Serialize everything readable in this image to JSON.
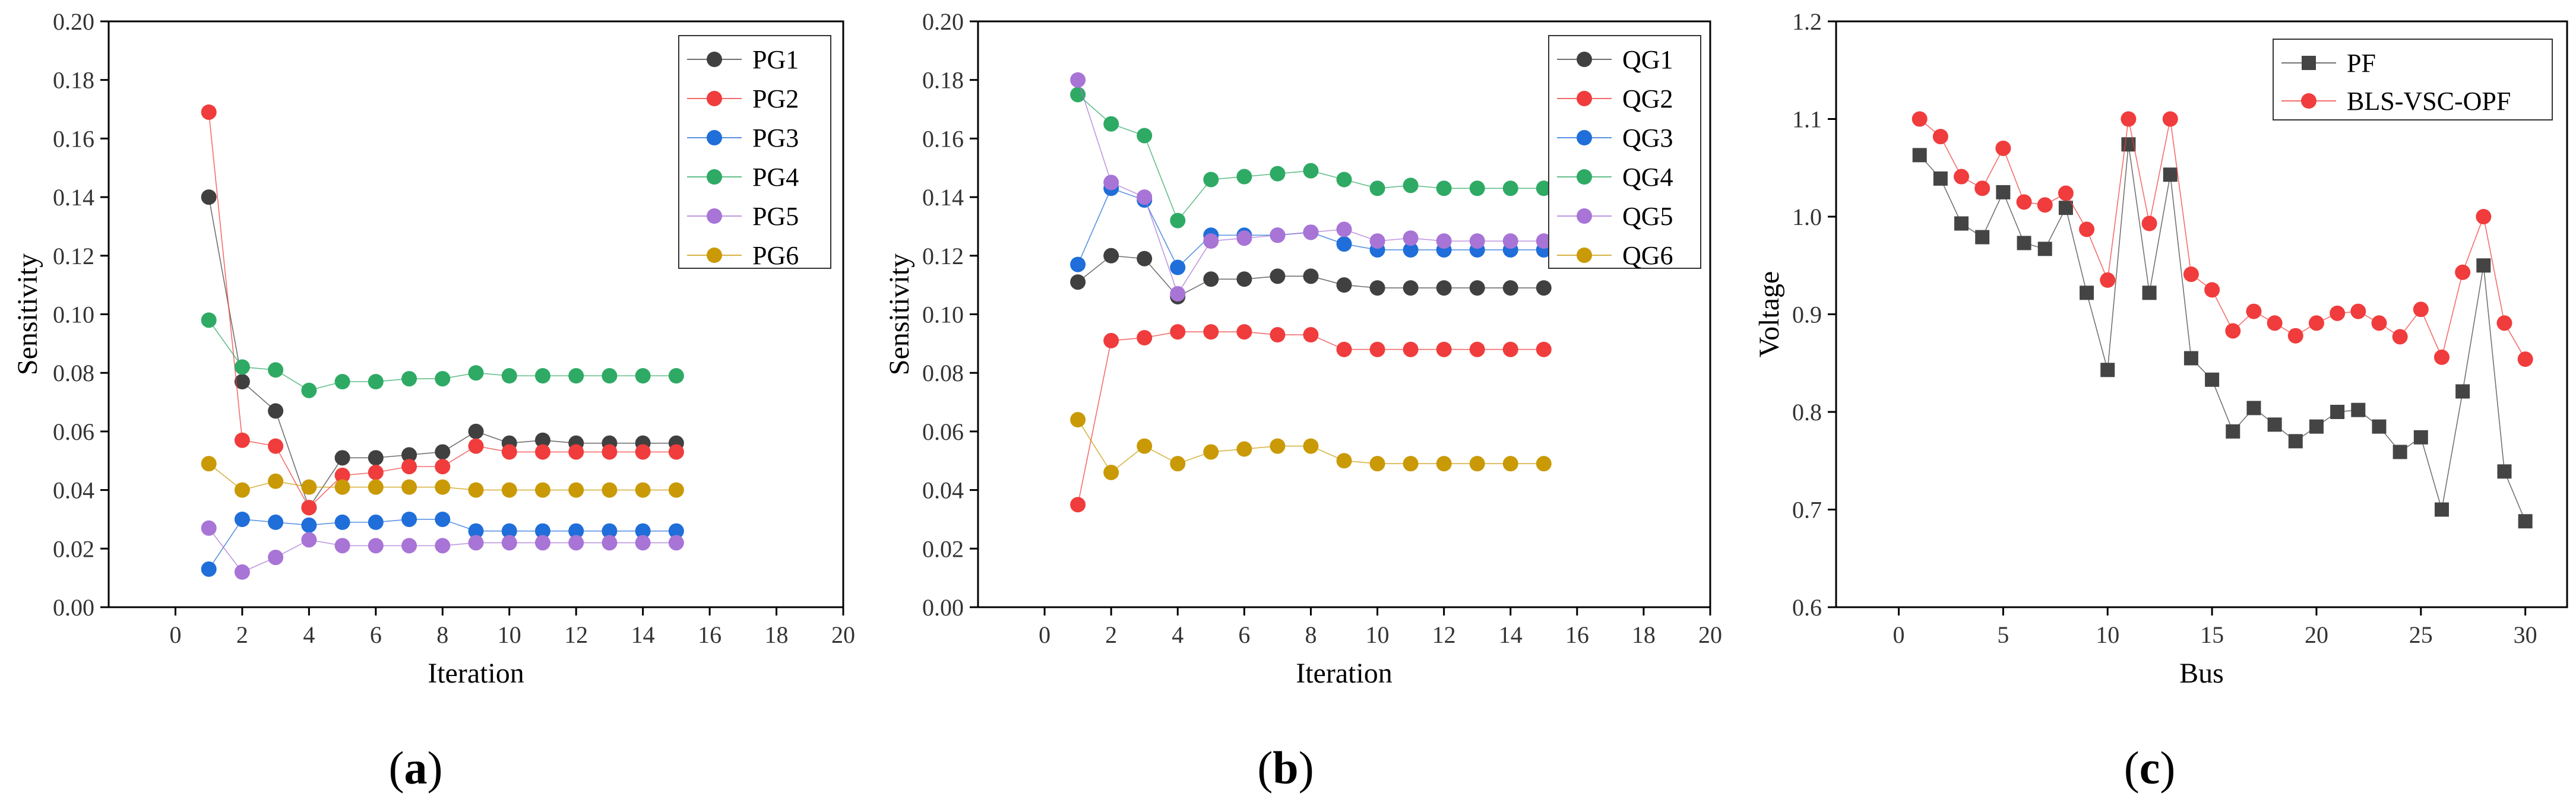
{
  "chart_data": [
    {
      "type": "line",
      "caption_letter": "a",
      "xlabel": "Iteration",
      "ylabel": "Sensitivity",
      "xlim": [
        -2,
        20
      ],
      "ylim": [
        0,
        0.2
      ],
      "x_ticks": [
        "0",
        "2",
        "4",
        "6",
        "8",
        "10",
        "12",
        "14",
        "16",
        "18",
        "20"
      ],
      "y_ticks": [
        "0.00",
        "0.02",
        "0.04",
        "0.06",
        "0.08",
        "0.10",
        "0.12",
        "0.14",
        "0.16",
        "0.18",
        "0.20"
      ],
      "legend_position": "top-right",
      "x": [
        1,
        2,
        3,
        4,
        5,
        6,
        7,
        8,
        9,
        10,
        11,
        12,
        13,
        14,
        15
      ],
      "series": [
        {
          "name": "PG1",
          "color": "#404040",
          "values": [
            0.14,
            0.077,
            0.067,
            0.034,
            0.051,
            0.051,
            0.052,
            0.053,
            0.06,
            0.056,
            0.057,
            0.056,
            0.056,
            0.056,
            0.056
          ]
        },
        {
          "name": "PG2",
          "color": "#f03c3c",
          "values": [
            0.169,
            0.057,
            0.055,
            0.034,
            0.045,
            0.046,
            0.048,
            0.048,
            0.055,
            0.053,
            0.053,
            0.053,
            0.053,
            0.053,
            0.053
          ]
        },
        {
          "name": "PG3",
          "color": "#1f6ed9",
          "values": [
            0.013,
            0.03,
            0.029,
            0.028,
            0.029,
            0.029,
            0.03,
            0.03,
            0.026,
            0.026,
            0.026,
            0.026,
            0.026,
            0.026,
            0.026
          ]
        },
        {
          "name": "PG4",
          "color": "#2eaa64",
          "values": [
            0.098,
            0.082,
            0.081,
            0.074,
            0.077,
            0.077,
            0.078,
            0.078,
            0.08,
            0.079,
            0.079,
            0.079,
            0.079,
            0.079,
            0.079
          ]
        },
        {
          "name": "PG5",
          "color": "#a874d6",
          "values": [
            0.027,
            0.012,
            0.017,
            0.023,
            0.021,
            0.021,
            0.021,
            0.021,
            0.022,
            0.022,
            0.022,
            0.022,
            0.022,
            0.022,
            0.022
          ]
        },
        {
          "name": "PG6",
          "color": "#c99a06",
          "values": [
            0.049,
            0.04,
            0.043,
            0.041,
            0.041,
            0.041,
            0.041,
            0.041,
            0.04,
            0.04,
            0.04,
            0.04,
            0.04,
            0.04,
            0.04
          ]
        }
      ]
    },
    {
      "type": "line",
      "caption_letter": "b",
      "xlabel": "Iteration",
      "ylabel": "Sensitivity",
      "xlim": [
        -2,
        20
      ],
      "ylim": [
        0,
        0.2
      ],
      "x_ticks": [
        "0",
        "2",
        "4",
        "6",
        "8",
        "10",
        "12",
        "14",
        "16",
        "18",
        "20"
      ],
      "y_ticks": [
        "0.00",
        "0.02",
        "0.04",
        "0.06",
        "0.08",
        "0.10",
        "0.12",
        "0.14",
        "0.16",
        "0.18",
        "0.20"
      ],
      "legend_position": "top-right",
      "x": [
        1,
        2,
        3,
        4,
        5,
        6,
        7,
        8,
        9,
        10,
        11,
        12,
        13,
        14,
        15
      ],
      "series": [
        {
          "name": "QG1",
          "color": "#404040",
          "values": [
            0.111,
            0.12,
            0.119,
            0.106,
            0.112,
            0.112,
            0.113,
            0.113,
            0.11,
            0.109,
            0.109,
            0.109,
            0.109,
            0.109,
            0.109
          ]
        },
        {
          "name": "QG2",
          "color": "#f03c3c",
          "values": [
            0.035,
            0.091,
            0.092,
            0.094,
            0.094,
            0.094,
            0.093,
            0.093,
            0.088,
            0.088,
            0.088,
            0.088,
            0.088,
            0.088,
            0.088
          ]
        },
        {
          "name": "QG3",
          "color": "#1f6ed9",
          "values": [
            0.117,
            0.143,
            0.139,
            0.116,
            0.127,
            0.127,
            0.127,
            0.128,
            0.124,
            0.122,
            0.122,
            0.122,
            0.122,
            0.122,
            0.122
          ]
        },
        {
          "name": "QG4",
          "color": "#2eaa64",
          "values": [
            0.175,
            0.165,
            0.161,
            0.132,
            0.146,
            0.147,
            0.148,
            0.149,
            0.146,
            0.143,
            0.144,
            0.143,
            0.143,
            0.143,
            0.143
          ]
        },
        {
          "name": "QG5",
          "color": "#a874d6",
          "values": [
            0.18,
            0.145,
            0.14,
            0.107,
            0.125,
            0.126,
            0.127,
            0.128,
            0.129,
            0.125,
            0.126,
            0.125,
            0.125,
            0.125,
            0.125
          ]
        },
        {
          "name": "QG6",
          "color": "#c99a06",
          "values": [
            0.064,
            0.046,
            0.055,
            0.049,
            0.053,
            0.054,
            0.055,
            0.055,
            0.05,
            0.049,
            0.049,
            0.049,
            0.049,
            0.049,
            0.049
          ]
        }
      ]
    },
    {
      "type": "line",
      "caption_letter": "c",
      "xlabel": "Bus",
      "ylabel": "Voltage",
      "xlim": [
        -3,
        32
      ],
      "ylim": [
        0.6,
        1.2
      ],
      "x_ticks": [
        "0",
        "5",
        "10",
        "15",
        "20",
        "25",
        "30"
      ],
      "y_ticks": [
        "0.6",
        "0.7",
        "0.8",
        "0.9",
        "1.0",
        "1.1",
        "1.2"
      ],
      "legend_position": "top-right",
      "x": [
        1,
        2,
        3,
        4,
        5,
        6,
        7,
        8,
        9,
        10,
        11,
        12,
        13,
        14,
        15,
        16,
        17,
        18,
        19,
        20,
        21,
        22,
        23,
        24,
        25,
        26,
        27,
        28,
        29,
        30
      ],
      "series": [
        {
          "name": "PF",
          "color": "#444444",
          "marker": "square",
          "values": [
            1.063,
            1.039,
            0.993,
            0.979,
            1.025,
            0.973,
            0.967,
            1.009,
            0.922,
            0.843,
            1.074,
            0.922,
            1.043,
            0.855,
            0.833,
            0.78,
            0.804,
            0.787,
            0.77,
            0.785,
            0.8,
            0.802,
            0.785,
            0.759,
            0.774,
            0.7,
            0.821,
            0.95,
            0.739,
            0.688
          ]
        },
        {
          "name": "BLS-VSC-OPF",
          "color": "#f03c3c",
          "marker": "circle",
          "values": [
            1.1,
            1.082,
            1.041,
            1.029,
            1.07,
            1.015,
            1.012,
            1.024,
            0.987,
            0.935,
            1.1,
            0.993,
            1.1,
            0.941,
            0.925,
            0.883,
            0.903,
            0.891,
            0.878,
            0.891,
            0.901,
            0.903,
            0.891,
            0.877,
            0.905,
            0.856,
            0.943,
            1.0,
            0.891,
            0.854
          ]
        }
      ]
    }
  ]
}
